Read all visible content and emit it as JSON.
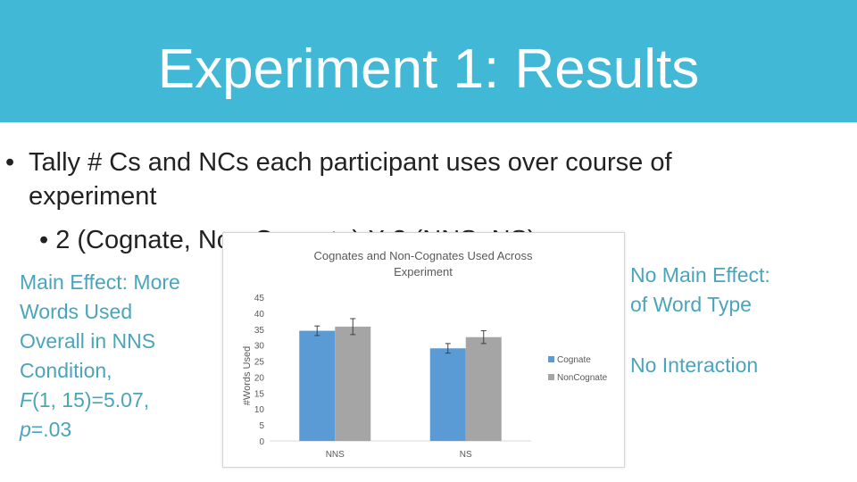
{
  "slide": {
    "title": "Experiment 1: Results",
    "bullet1_line1": "Tally # Cs and NCs each participant uses over course of",
    "bullet1_line2": "experiment",
    "bullet2": "2 (Cognate, Non-Cognate) X 2 (NNS, NS)",
    "bullet_glyph": "•",
    "left_note": {
      "line1": "Main Effect: More",
      "line2": "Words Used",
      "line3": "Overall in NNS",
      "line4": "Condition,",
      "line5_stat": "F",
      "line5_rest": "(1, 15)=5.07,",
      "line6_stat": "p",
      "line6_rest": "=.03"
    },
    "right_note1_line1": "No Main Effect:",
    "right_note1_line2": "of Word Type",
    "right_note2": "No Interaction",
    "colors": {
      "header": "#41b8d5",
      "note_text": "#4aa4bc"
    }
  },
  "chart_data": {
    "type": "bar",
    "title": "Cognates and Non-Cognates Used Across Experiment",
    "title_line1": "Cognates and Non-Cognates Used Across",
    "title_line2": "Experiment",
    "ylabel": "#Words Used",
    "xlabel": "",
    "categories": [
      "NNS",
      "NS"
    ],
    "series": [
      {
        "name": "Cognate",
        "values": [
          34.5,
          29.0
        ],
        "errors": [
          1.5,
          1.5
        ],
        "color": "#5b9bd5"
      },
      {
        "name": "NonCognate",
        "values": [
          35.8,
          32.5
        ],
        "errors": [
          2.5,
          2.0
        ],
        "color": "#a5a5a5"
      }
    ],
    "ylim": [
      0,
      45
    ],
    "yticks": [
      "0",
      "5",
      "10",
      "15",
      "20",
      "25",
      "30",
      "35",
      "40",
      "45"
    ],
    "legend_position": "right",
    "grid": false
  }
}
